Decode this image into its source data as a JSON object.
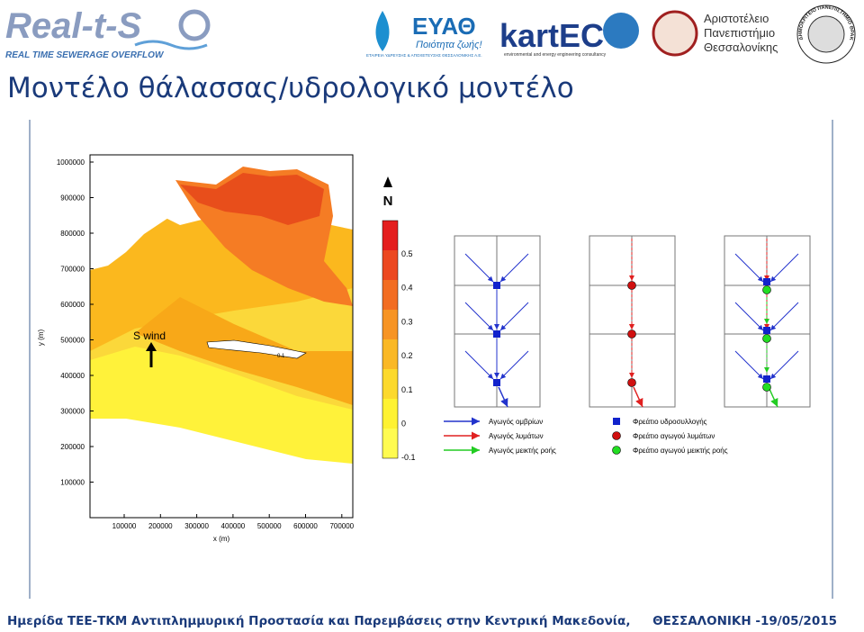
{
  "header": {
    "logos": {
      "realtso": {
        "name": "Real-t-S",
        "subtitle": "REAL TIME SEWERAGE OVERFLOW"
      },
      "eyath": {
        "name": "ΕΥΑΘ",
        "slogan": "Ποιότητα ζωής!",
        "caption": "ΕΤΑΙΡΕΙΑ ΥΔΡΕΥΣΗΣ & ΑΠΟΧΕΤΕΥΣΗΣ ΘΕΣΣΑΛΟΝΙΚΗΣ Α.Ε."
      },
      "kartec": {
        "name": "kartEC",
        "caption": "environmental and energy engineering consultancy"
      },
      "auth": {
        "lines": [
          "Αριστοτέλειο",
          "Πανεπιστήμιο",
          "Θεσσαλονίκης"
        ]
      },
      "duth": {
        "name": "ΔΗΜΟΚΡΙΤΕΙΟ ΠΑΝΕΠΙΣΤΗΜΙΟ ΘΡΑΚΗΣ"
      }
    }
  },
  "title": "Μοντέλο θάλασσας/υδρολογικό μοντέλο",
  "map": {
    "yticks": [
      1000000,
      900000,
      800000,
      700000,
      600000,
      500000,
      400000,
      300000,
      200000,
      100000
    ],
    "xticks": [
      100000,
      200000,
      300000,
      400000,
      500000,
      600000,
      700000
    ],
    "ylabel": "y (m)",
    "xlabel": "x (m)",
    "annotation": "S wind",
    "contour_label": "0.1",
    "north": "N",
    "colorbar_ticks": [
      0.5,
      0.4,
      0.3,
      0.2,
      0.1,
      0,
      -0.1
    ]
  },
  "diagram": {
    "legend_pipes": [
      "Αγωγός ομβρίων",
      "Αγωγός λυμάτων",
      "Αγωγός μεικτής ροής"
    ],
    "legend_nodes": [
      "Φρεάτιο υδροσυλλογής",
      "Φρεάτιο αγωγού λυμάτων",
      "Φρεάτιο αγωγού μεικτής ροής"
    ]
  },
  "footer": {
    "event": "Ημερίδα ΤΕΕ-ΤΚΜ Αντιπλημμυρική Προστασία και Παρεμβάσεις στην Κεντρική Μακεδονία,",
    "place_date": "ΘΕΣΣΑΛΟΝΙΚΗ -19/05/2015"
  }
}
